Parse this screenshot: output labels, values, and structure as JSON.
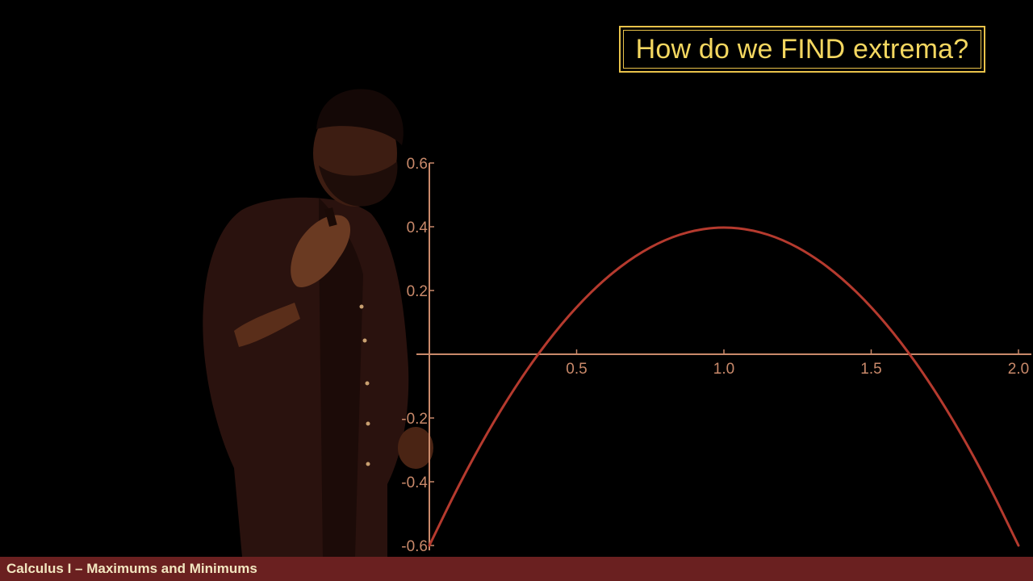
{
  "title": "How do we FIND extrema?",
  "footer": {
    "course": "Calculus I – Maximums and Minimums"
  },
  "colors": {
    "axis": "#c9896a",
    "curve": "#b53a2e",
    "title_text": "#f4d760",
    "title_border": "#e8c24a",
    "footer_bg": "#6a2020",
    "footer_text": "#f2e6c0"
  },
  "chart_data": {
    "type": "line",
    "title": "",
    "xlabel": "",
    "ylabel": "",
    "xlim": [
      0,
      2.0
    ],
    "ylim": [
      -0.6,
      0.6
    ],
    "x_ticks": [
      "0.5",
      "1.0",
      "1.5",
      "2.0"
    ],
    "y_ticks": [
      "0.6",
      "0.4",
      "0.2",
      "-0.2",
      "-0.4",
      "-0.6"
    ],
    "x_tick_values": [
      0.5,
      1.0,
      1.5,
      2.0
    ],
    "y_tick_values": [
      0.6,
      0.4,
      0.2,
      -0.2,
      -0.4,
      -0.6
    ],
    "grid": false,
    "series": [
      {
        "x": [
          0,
          0.1,
          0.2,
          0.3,
          0.4,
          0.5,
          0.6,
          0.7,
          0.8,
          0.9,
          1.0,
          1.1,
          1.2,
          1.3,
          1.4,
          1.5,
          1.6,
          1.7,
          1.8,
          1.9,
          2.0
        ],
        "y": [
          -0.6,
          -0.41,
          -0.24,
          -0.09,
          0.04,
          0.15,
          0.24,
          0.31,
          0.36,
          0.39,
          0.4,
          0.39,
          0.36,
          0.31,
          0.24,
          0.15,
          0.04,
          -0.09,
          -0.24,
          -0.41,
          -0.6
        ]
      }
    ]
  },
  "presenter": {
    "description_icon": "presenter-figure"
  }
}
